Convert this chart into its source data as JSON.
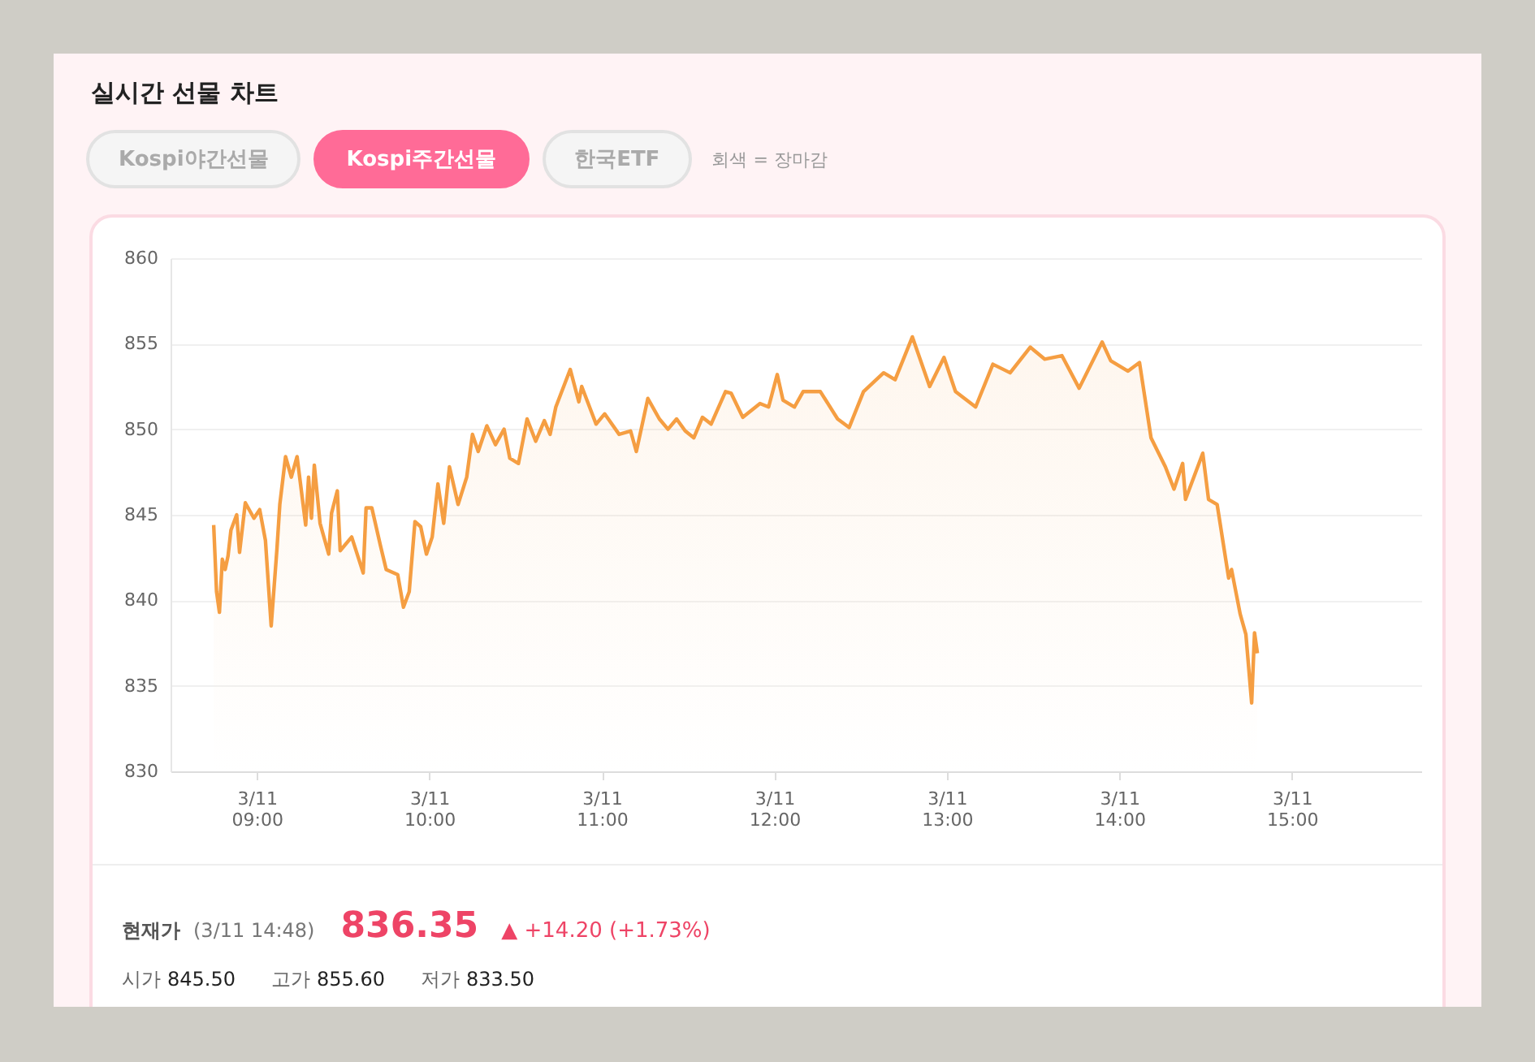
{
  "chart_data": {
    "type": "area",
    "title": "실시간 선물 차트",
    "x": [
      "--03-11T08:45",
      "--03-11T08:46",
      "--03-11T08:47",
      "--03-11T08:48",
      "--03-11T08:49",
      "--03-11T08:50",
      "--03-11T08:51",
      "--03-11T08:53",
      "--03-11T08:54",
      "--03-11T08:56",
      "--03-11T08:59",
      "--03-11T09:01",
      "--03-11T09:03",
      "--03-11T09:05",
      "--03-11T09:07",
      "--03-11T09:08",
      "--03-11T09:10",
      "--03-11T09:12",
      "--03-11T09:14",
      "--03-11T09:17",
      "--03-11T09:18",
      "--03-11T09:19",
      "--03-11T09:20",
      "--03-11T09:22",
      "--03-11T09:25",
      "--03-11T09:26",
      "--03-11T09:28",
      "--03-11T09:29",
      "--03-11T09:33",
      "--03-11T09:37",
      "--03-11T09:38",
      "--03-11T09:40",
      "--03-11T09:43",
      "--03-11T09:45",
      "--03-11T09:49",
      "--03-11T09:51",
      "--03-11T09:53",
      "--03-11T09:55",
      "--03-11T09:57",
      "--03-11T09:59",
      "--03-11T10:01",
      "--03-11T10:03",
      "--03-11T10:05",
      "--03-11T10:07",
      "--03-11T10:10",
      "--03-11T10:13",
      "--03-11T10:15",
      "--03-11T10:17",
      "--03-11T10:20",
      "--03-11T10:23",
      "--03-11T10:26",
      "--03-11T10:28",
      "--03-11T10:31",
      "--03-11T10:34",
      "--03-11T10:37",
      "--03-11T10:40",
      "--03-11T10:42",
      "--03-11T10:44",
      "--03-11T10:49",
      "--03-11T10:52",
      "--03-11T10:53",
      "--03-11T10:58",
      "--03-11T11:01",
      "--03-11T11:06",
      "--03-11T11:10",
      "--03-11T11:12",
      "--03-11T11:16",
      "--03-11T11:20",
      "--03-11T11:23",
      "--03-11T11:26",
      "--03-11T11:29",
      "--03-11T11:32",
      "--03-11T11:35",
      "--03-11T11:38",
      "--03-11T11:43",
      "--03-11T11:45",
      "--03-11T11:49",
      "--03-11T11:52",
      "--03-11T11:55",
      "--03-11T11:58",
      "--03-11T12:01",
      "--03-11T12:03",
      "--03-11T12:07",
      "--03-11T12:10",
      "--03-11T12:16",
      "--03-11T12:22",
      "--03-11T12:26",
      "--03-11T12:31",
      "--03-11T12:38",
      "--03-11T12:42",
      "--03-11T12:48",
      "--03-11T12:54",
      "--03-11T12:59",
      "--03-11T13:03",
      "--03-11T13:10",
      "--03-11T13:16",
      "--03-11T13:22",
      "--03-11T13:29",
      "--03-11T13:34",
      "--03-11T13:40",
      "--03-11T13:46",
      "--03-11T13:54",
      "--03-11T13:57",
      "--03-11T14:03",
      "--03-11T14:07",
      "--03-11T14:11",
      "--03-11T14:16",
      "--03-11T14:19",
      "--03-11T14:22",
      "--03-11T14:23",
      "--03-11T14:29",
      "--03-11T14:31",
      "--03-11T14:34",
      "--03-11T14:38",
      "--03-11T14:39",
      "--03-11T14:42",
      "--03-11T14:44",
      "--03-11T14:46",
      "--03-11T14:47",
      "--03-11T14:48"
    ],
    "series": [
      {
        "color": "#f59e42",
        "values": [
          844.4,
          840.5,
          839.3,
          842.4,
          841.8,
          842.6,
          844.1,
          845.0,
          842.8,
          845.7,
          844.8,
          845.3,
          843.5,
          838.5,
          843.0,
          845.6,
          848.4,
          847.2,
          848.4,
          844.4,
          847.2,
          844.8,
          847.9,
          844.5,
          842.7,
          845.1,
          846.4,
          842.9,
          843.7,
          841.6,
          845.4,
          845.4,
          843.2,
          841.8,
          841.5,
          839.6,
          840.5,
          844.6,
          844.3,
          842.7,
          843.7,
          846.8,
          844.5,
          847.8,
          845.6,
          847.2,
          849.7,
          848.7,
          850.2,
          849.1,
          850.0,
          848.3,
          848.0,
          850.6,
          849.3,
          850.5,
          849.7,
          851.3,
          853.5,
          851.6,
          852.5,
          850.3,
          850.9,
          849.7,
          849.9,
          848.7,
          851.8,
          850.6,
          850.0,
          850.6,
          849.9,
          849.5,
          850.7,
          850.3,
          852.2,
          852.1,
          850.7,
          851.1,
          851.5,
          851.3,
          853.2,
          851.7,
          851.3,
          852.2,
          852.2,
          850.6,
          850.1,
          852.2,
          853.3,
          852.9,
          855.4,
          852.5,
          854.2,
          852.2,
          851.3,
          853.8,
          853.3,
          854.8,
          854.1,
          854.3,
          852.4,
          855.1,
          854.0,
          853.4,
          853.9,
          849.5,
          847.8,
          846.5,
          848.0,
          845.9,
          848.6,
          845.9,
          845.6,
          841.3,
          841.8,
          839.2,
          838.0,
          834.0,
          838.1,
          836.9
        ]
      }
    ],
    "xlim": [
      "--03-11T08:30",
      "--03-11T15:45"
    ],
    "xticks": [
      {
        "value": "--03-11T09:00",
        "label": "3/11 09:00"
      },
      {
        "value": "--03-11T10:00",
        "label": "3/11 10:00"
      },
      {
        "value": "--03-11T11:00",
        "label": "3/11 11:00"
      },
      {
        "value": "--03-11T12:00",
        "label": "3/11 12:00"
      },
      {
        "value": "--03-11T13:00",
        "label": "3/11 13:00"
      },
      {
        "value": "--03-11T14:00",
        "label": "3/11 14:00"
      },
      {
        "value": "--03-11T15:00",
        "label": "3/11 15:00"
      }
    ],
    "ylim": [
      830,
      860
    ],
    "yticks": [
      830,
      835,
      840,
      845,
      850,
      855,
      860
    ],
    "grid": "y",
    "marker": "none",
    "line_style": "solid",
    "annotations": [
      "Kospi야간선물",
      "Kospi주간선물",
      "한국ETF",
      "회색 = 장마감",
      "현재가",
      "(3/11 14:48)",
      "836.35",
      "▲ +14.20 (+1.73%)",
      "시가 845.50",
      "고가 855.60",
      "저가 833.50"
    ]
  }
}
